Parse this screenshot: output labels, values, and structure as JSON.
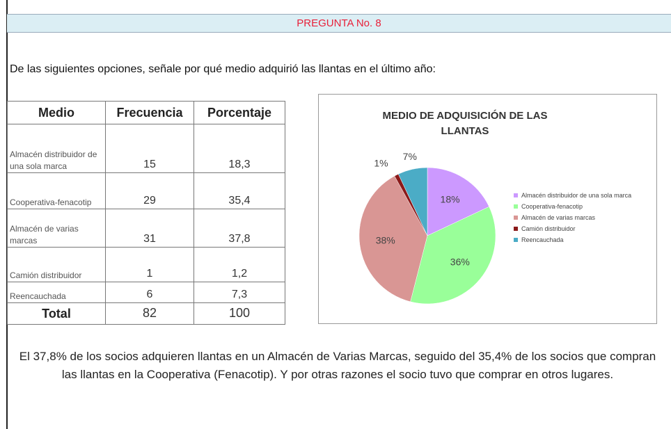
{
  "header": {
    "title": "PREGUNTA No. 8"
  },
  "question": "De las siguientes opciones, señale por qué medio adquirió las llantas en el último año:",
  "table": {
    "columns": [
      "Medio",
      "Frecuencia",
      "Porcentaje"
    ],
    "rows": [
      [
        "Almacén distribuidor de una sola marca",
        "15",
        "18,3"
      ],
      [
        "Cooperativa-fenacotip",
        "29",
        "35,4"
      ],
      [
        "Almacén de varias marcas",
        "31",
        "37,8"
      ],
      [
        "Camión distribuidor",
        "1",
        "1,2"
      ],
      [
        "Reencauchada",
        "6",
        "7,3"
      ]
    ],
    "total": [
      "Total",
      "82",
      "100"
    ]
  },
  "chart_data": {
    "type": "pie",
    "title": "MEDIO DE ADQUISICIÓN DE LAS LLANTAS",
    "categories": [
      "Almacén distribuidor de una sola marca",
      "Cooperativa-fenacotip",
      "Almacén de varias marcas",
      "Camión distribuidor",
      "Reencauchada"
    ],
    "values": [
      18,
      36,
      38,
      1,
      7
    ],
    "value_labels": [
      "18%",
      "36%",
      "38%",
      "1%",
      "7%"
    ],
    "colors": [
      "#cc99ff",
      "#99ff99",
      "#d99694",
      "#8b1a1a",
      "#4bacc6"
    ]
  },
  "conclusion": "El 37,8% de los socios adquieren llantas en un Almacén de Varias Marcas, seguido del 35,4% de los socios que compran las llantas en la Cooperativa (Fenacotip). Y por otras razones el socio tuvo que comprar en otros lugares."
}
